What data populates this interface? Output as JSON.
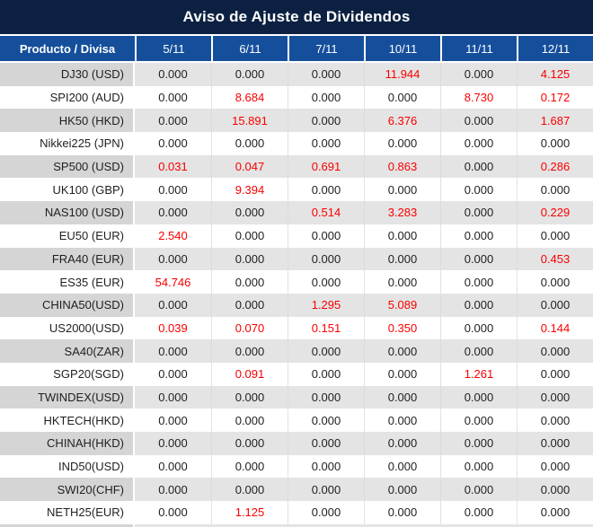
{
  "title": "Aviso de Ajuste de Dividendos",
  "colors": {
    "title_bg": "#0c2142",
    "header_bg": "#154f9c",
    "row_gray": "#e4e4e4",
    "row_gray_first": "#d5d5d5",
    "value_red": "#fa0000",
    "text": "#1f1f1f"
  },
  "table": {
    "product_header": "Producto / Divisa",
    "date_headers": [
      "5/11",
      "6/11",
      "7/11",
      "10/11",
      "11/11",
      "12/11"
    ],
    "rows": [
      {
        "product": "DJ30 (USD)",
        "values": [
          "0.000",
          "0.000",
          "0.000",
          "11.944",
          "0.000",
          "4.125"
        ],
        "red": [
          false,
          false,
          false,
          true,
          false,
          true
        ]
      },
      {
        "product": "SPI200 (AUD)",
        "values": [
          "0.000",
          "8.684",
          "0.000",
          "0.000",
          "8.730",
          "0.172"
        ],
        "red": [
          false,
          true,
          false,
          false,
          true,
          true
        ]
      },
      {
        "product": "HK50 (HKD)",
        "values": [
          "0.000",
          "15.891",
          "0.000",
          "6.376",
          "0.000",
          "1.687"
        ],
        "red": [
          false,
          true,
          false,
          true,
          false,
          true
        ]
      },
      {
        "product": "Nikkei225 (JPN)",
        "values": [
          "0.000",
          "0.000",
          "0.000",
          "0.000",
          "0.000",
          "0.000"
        ],
        "red": [
          false,
          false,
          false,
          false,
          false,
          false
        ]
      },
      {
        "product": "SP500 (USD)",
        "values": [
          "0.031",
          "0.047",
          "0.691",
          "0.863",
          "0.000",
          "0.286"
        ],
        "red": [
          true,
          true,
          true,
          true,
          false,
          true
        ]
      },
      {
        "product": "UK100 (GBP)",
        "values": [
          "0.000",
          "9.394",
          "0.000",
          "0.000",
          "0.000",
          "0.000"
        ],
        "red": [
          false,
          true,
          false,
          false,
          false,
          false
        ]
      },
      {
        "product": "NAS100 (USD)",
        "values": [
          "0.000",
          "0.000",
          "0.514",
          "3.283",
          "0.000",
          "0.229"
        ],
        "red": [
          false,
          false,
          true,
          true,
          false,
          true
        ]
      },
      {
        "product": "EU50 (EUR)",
        "values": [
          "2.540",
          "0.000",
          "0.000",
          "0.000",
          "0.000",
          "0.000"
        ],
        "red": [
          true,
          false,
          false,
          false,
          false,
          false
        ]
      },
      {
        "product": "FRA40 (EUR)",
        "values": [
          "0.000",
          "0.000",
          "0.000",
          "0.000",
          "0.000",
          "0.453"
        ],
        "red": [
          false,
          false,
          false,
          false,
          false,
          true
        ]
      },
      {
        "product": "ES35 (EUR)",
        "values": [
          "54.746",
          "0.000",
          "0.000",
          "0.000",
          "0.000",
          "0.000"
        ],
        "red": [
          true,
          false,
          false,
          false,
          false,
          false
        ]
      },
      {
        "product": "CHINA50(USD)",
        "values": [
          "0.000",
          "0.000",
          "1.295",
          "5.089",
          "0.000",
          "0.000"
        ],
        "red": [
          false,
          false,
          true,
          true,
          false,
          false
        ]
      },
      {
        "product": "US2000(USD)",
        "values": [
          "0.039",
          "0.070",
          "0.151",
          "0.350",
          "0.000",
          "0.144"
        ],
        "red": [
          true,
          true,
          true,
          true,
          false,
          true
        ]
      },
      {
        "product": "SA40(ZAR)",
        "values": [
          "0.000",
          "0.000",
          "0.000",
          "0.000",
          "0.000",
          "0.000"
        ],
        "red": [
          false,
          false,
          false,
          false,
          false,
          false
        ]
      },
      {
        "product": "SGP20(SGD)",
        "values": [
          "0.000",
          "0.091",
          "0.000",
          "0.000",
          "1.261",
          "0.000"
        ],
        "red": [
          false,
          true,
          false,
          false,
          true,
          false
        ]
      },
      {
        "product": "TWINDEX(USD)",
        "values": [
          "0.000",
          "0.000",
          "0.000",
          "0.000",
          "0.000",
          "0.000"
        ],
        "red": [
          false,
          false,
          false,
          false,
          false,
          false
        ]
      },
      {
        "product": "HKTECH(HKD)",
        "values": [
          "0.000",
          "0.000",
          "0.000",
          "0.000",
          "0.000",
          "0.000"
        ],
        "red": [
          false,
          false,
          false,
          false,
          false,
          false
        ]
      },
      {
        "product": "CHINAH(HKD)",
        "values": [
          "0.000",
          "0.000",
          "0.000",
          "0.000",
          "0.000",
          "0.000"
        ],
        "red": [
          false,
          false,
          false,
          false,
          false,
          false
        ]
      },
      {
        "product": "IND50(USD)",
        "values": [
          "0.000",
          "0.000",
          "0.000",
          "0.000",
          "0.000",
          "0.000"
        ],
        "red": [
          false,
          false,
          false,
          false,
          false,
          false
        ]
      },
      {
        "product": "SWI20(CHF)",
        "values": [
          "0.000",
          "0.000",
          "0.000",
          "0.000",
          "0.000",
          "0.000"
        ],
        "red": [
          false,
          false,
          false,
          false,
          false,
          false
        ]
      },
      {
        "product": "NETH25(EUR)",
        "values": [
          "0.000",
          "1.125",
          "0.000",
          "0.000",
          "0.000",
          "0.000"
        ],
        "red": [
          false,
          true,
          false,
          false,
          false,
          false
        ]
      }
    ]
  }
}
